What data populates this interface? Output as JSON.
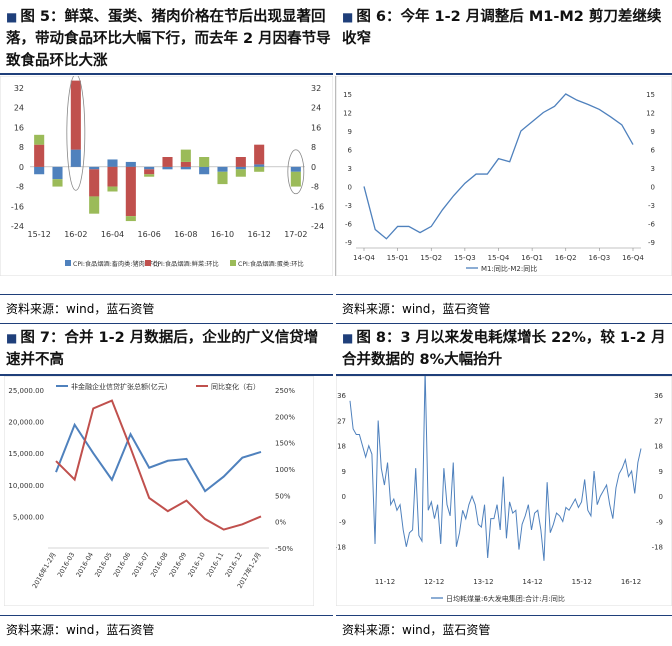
{
  "fig5": {
    "title": "图 5：鲜菜、蛋类、猪肉价格在节后出现显著回落，带动食品环比大幅下行，而去年 2 月因春节导致食品环比大涨",
    "source": "资料来源：wind，蓝石资管",
    "icon": "square-marker-icon"
  },
  "fig6": {
    "title": "图 6：今年 1-2 月调整后 M1-M2 剪刀差继续收窄",
    "source": "资料来源：wind，蓝石资管",
    "icon": "square-marker-icon"
  },
  "fig7": {
    "title": "图 7：合并 1-2 月数据后，企业的广义信贷增速并不高",
    "source": "资料来源：wind，蓝石资管",
    "icon": "square-marker-icon"
  },
  "fig8": {
    "title": "图 8：3 月以来发电耗煤增长 22%，较 1-2 月合并数据的 8%大幅抬升",
    "source": "资料来源：wind，蓝石资管",
    "icon": "square-marker-icon"
  },
  "chart_data": [
    {
      "id": "fig5",
      "type": "bar",
      "stacked": true,
      "categories": [
        "15-12",
        "16-01",
        "16-02",
        "16-03",
        "16-04",
        "16-05",
        "16-06",
        "16-07",
        "16-08",
        "16-09",
        "16-10",
        "16-11",
        "16-12",
        "17-01",
        "17-02"
      ],
      "x_tick_labels": [
        "15-12",
        "16-02",
        "16-04",
        "16-06",
        "16-08",
        "16-10",
        "16-12",
        "17-02"
      ],
      "series": [
        {
          "name": "CPI:食品烟酒:畜肉类:猪肉:环比",
          "color": "#4f81bd",
          "values": [
            -3,
            -5,
            7,
            -1,
            3,
            2,
            -1,
            -1,
            -1,
            -3,
            -2,
            -1,
            1,
            0,
            -2
          ]
        },
        {
          "name": "CPI:食品烟酒:鲜菜:环比",
          "color": "#c0504d",
          "values": [
            9,
            0,
            28,
            -11,
            -8,
            -20,
            -2,
            4,
            2,
            0,
            0,
            4,
            8,
            0,
            0
          ]
        },
        {
          "name": "CPI:食品烟酒:蛋类:环比",
          "color": "#9bbb59",
          "values": [
            4,
            -3,
            0,
            -7,
            -2,
            -2,
            -1,
            0,
            5,
            4,
            -5,
            -3,
            -2,
            0,
            -6
          ]
        }
      ],
      "ylim": [
        -24,
        32
      ],
      "y_ticks_left": [
        -24,
        -16,
        -8,
        0,
        8,
        16,
        24,
        32
      ],
      "y_ticks_right": [
        -24,
        -16,
        -8,
        0,
        8,
        16,
        24,
        32
      ],
      "annotations": [
        "ellipse around 16-02",
        "ellipse around 17-02"
      ],
      "legend": "bottom"
    },
    {
      "id": "fig6",
      "type": "line",
      "x_tick_labels": [
        "14-Q4",
        "15-Q1",
        "15-Q2",
        "15-Q3",
        "15-Q4",
        "16-Q1",
        "16-Q2",
        "16-Q3",
        "16-Q4"
      ],
      "series": [
        {
          "name": "M1:同比-M2:同比",
          "color": "#4f81bd",
          "values": [
            0,
            -7,
            -8.5,
            -6.5,
            -6.5,
            -7.5,
            -6.5,
            -3.8,
            -1.5,
            0.5,
            2,
            2,
            4.5,
            4,
            9,
            10.5,
            12,
            13,
            15,
            14,
            13.3,
            12.5,
            11.3,
            10,
            6.8
          ]
        }
      ],
      "ylim": [
        -10,
        15
      ],
      "y_ticks_left": [
        -9,
        -6,
        -3,
        0,
        3,
        6,
        9,
        12,
        15
      ],
      "y_ticks_right": [
        -9,
        -6,
        -3,
        0,
        3,
        6,
        9,
        12,
        15
      ],
      "legend": "bottom"
    },
    {
      "id": "fig7",
      "type": "line",
      "dual_axis": true,
      "categories": [
        "2016年1-2月",
        "2016-03",
        "2016-04",
        "2016-05",
        "2016-06",
        "2016-07",
        "2016-08",
        "2016-09",
        "2016-10",
        "2016-11",
        "2016-12",
        "2017年1-2月"
      ],
      "series": [
        {
          "name": "非金融企业信贷扩张总额(亿元)",
          "axis": "left",
          "color": "#4f81bd",
          "values": [
            12000,
            19500,
            15000,
            10800,
            18000,
            12700,
            13800,
            14100,
            9000,
            11300,
            14300,
            15200
          ]
        },
        {
          "name": "同比变化（右）",
          "axis": "right",
          "color": "#c0504d",
          "values": [
            115,
            80,
            215,
            230,
            140,
            45,
            20,
            40,
            5,
            -15,
            -5,
            10
          ]
        }
      ],
      "ylim_left": [
        0,
        25000
      ],
      "y_ticks_left": [
        "5,000.00",
        "10,000.00",
        "15,000.00",
        "20,000.00",
        "25,000.00"
      ],
      "ylim_right": [
        -50,
        250
      ],
      "y_ticks_right": [
        "-50%",
        "0%",
        "50%",
        "100%",
        "150%",
        "200%",
        "250%"
      ],
      "legend": "top"
    },
    {
      "id": "fig8",
      "type": "line",
      "x_tick_labels": [
        "11-12",
        "12-12",
        "13-12",
        "14-12",
        "15-12",
        "16-12"
      ],
      "series": [
        {
          "name": "日均耗煤量:6大发电集团:合计:月:同比",
          "color": "#4f81bd",
          "values": [
            34,
            24,
            22,
            22,
            18,
            14,
            18,
            15,
            -17,
            27,
            10,
            4,
            12,
            -3,
            -1,
            -5,
            -3,
            -12,
            -18,
            -13,
            -12,
            10,
            -14,
            -16,
            45,
            -5,
            -2,
            -8,
            -3,
            -17,
            10,
            -3,
            -7,
            12,
            -18,
            -13,
            -5,
            -8,
            -3,
            0,
            -3,
            -10,
            -11,
            -3,
            -22,
            -8,
            -8,
            -3,
            -12,
            7,
            -15,
            -2,
            -6,
            -5,
            -19,
            -10,
            -7,
            -3,
            -12,
            -6,
            -5,
            -12,
            -23,
            5,
            -13,
            -10,
            -6,
            -7,
            -9,
            -4,
            -5,
            -3,
            -1,
            -4,
            -2,
            6,
            -5,
            -7,
            9,
            -3,
            0,
            2,
            4,
            -3,
            -8,
            3,
            8,
            10,
            13,
            7,
            9,
            1,
            12,
            17
          ]
        }
      ],
      "ylim": [
        -27,
        40
      ],
      "y_ticks_left": [
        -18,
        -9,
        0,
        9,
        18,
        27,
        36
      ],
      "y_ticks_right": [
        -18,
        -9,
        0,
        9,
        18,
        27,
        36
      ],
      "legend": "bottom"
    }
  ]
}
